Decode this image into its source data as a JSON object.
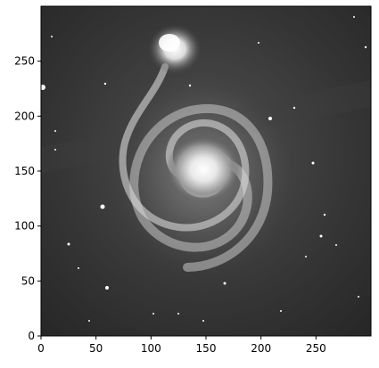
{
  "figure": {
    "image_description_icon": "galaxy-image-icon",
    "xlim": [
      0,
      300
    ],
    "ylim": [
      0,
      300
    ],
    "x_ticks": [
      "0",
      "50",
      "100",
      "150",
      "200",
      "250"
    ],
    "y_ticks": [
      "0",
      "50",
      "100",
      "150",
      "200",
      "250"
    ],
    "x_tick_values": [
      0,
      50,
      100,
      150,
      200,
      250
    ],
    "y_tick_values": [
      0,
      50,
      100,
      150,
      200,
      250
    ],
    "colors": {
      "background": "#ffffff",
      "sky": "#2a2a2a",
      "axis": "#000000"
    }
  }
}
